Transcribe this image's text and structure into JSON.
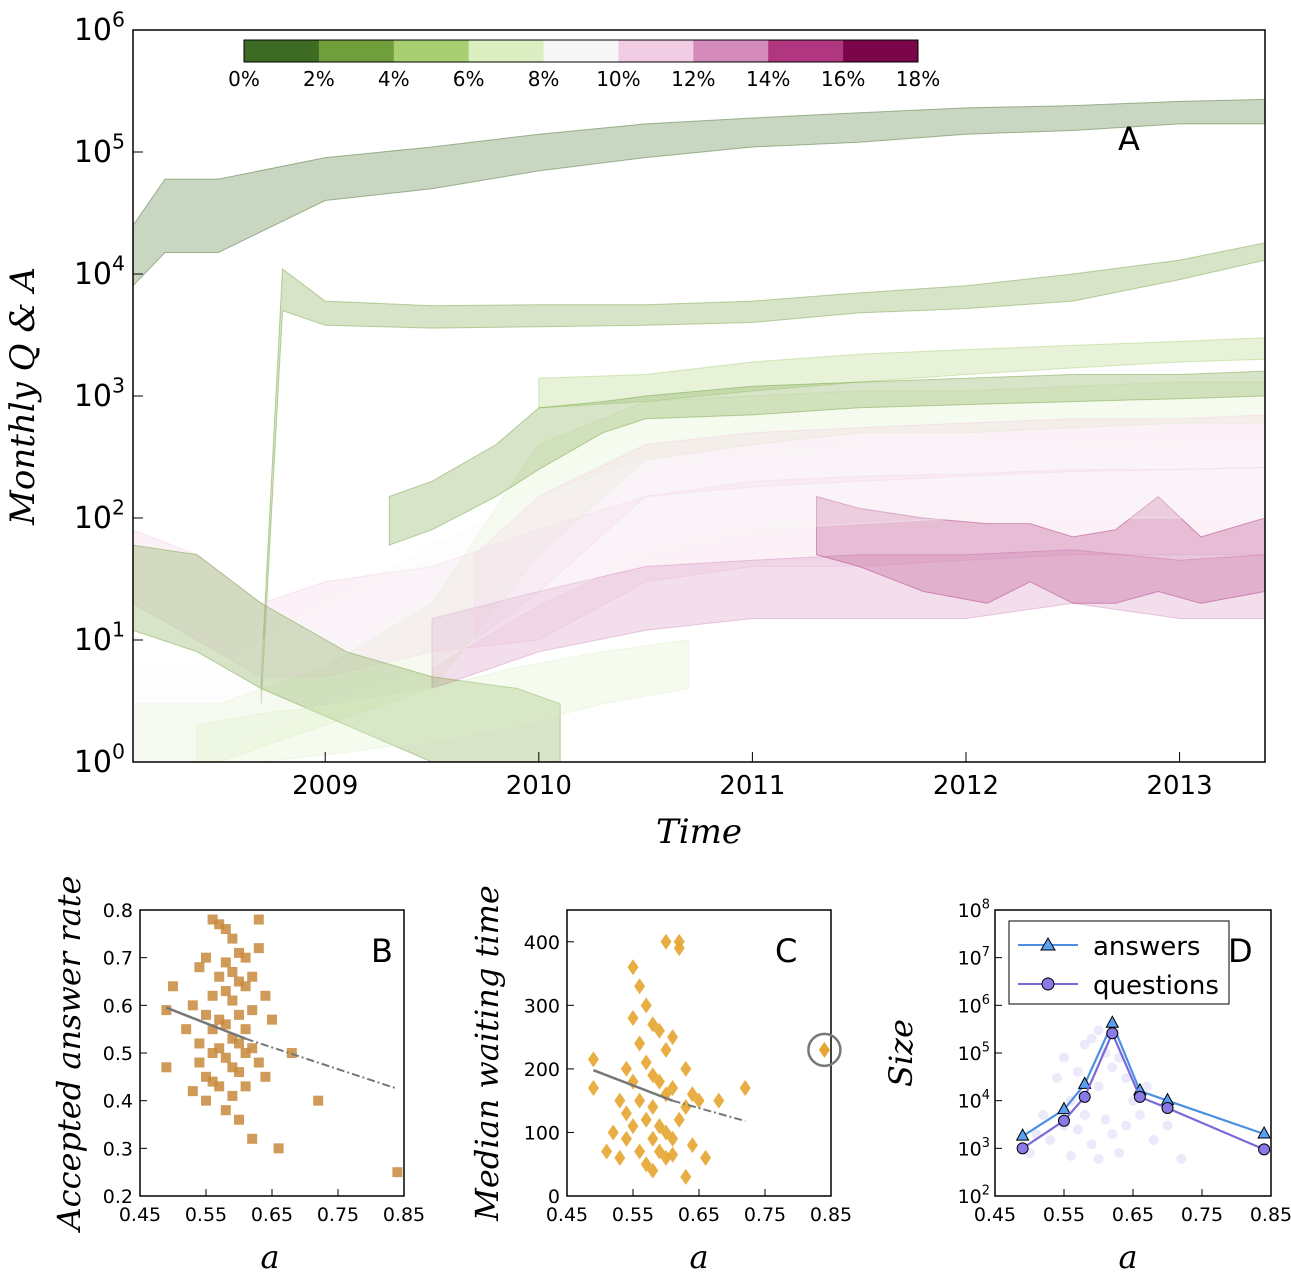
{
  "chart_data": [
    {
      "panel": "A",
      "type": "area",
      "panel_label": "A",
      "xlabel": "Time",
      "ylabel": "Monthly Q & A",
      "xticks": [
        "2009",
        "2010",
        "2011",
        "2012",
        "2013"
      ],
      "yticks": [
        "10^0",
        "10^1",
        "10^2",
        "10^3",
        "10^4",
        "10^5",
        "10^6"
      ],
      "y_scale": "log",
      "xlim": [
        2008.6,
        2013.9
      ],
      "ylim": [
        1,
        1000000
      ],
      "colorbar": {
        "ticks": [
          "0%",
          "2%",
          "4%",
          "6%",
          "8%",
          "10%",
          "12%",
          "14%",
          "16%",
          "18%"
        ],
        "colors": [
          "#3e6b24",
          "#6f9e3a",
          "#a8cf72",
          "#dcefc3",
          "#f7f7f7",
          "#f1cde4",
          "#d48bbc",
          "#b0367f",
          "#7a0649"
        ]
      },
      "bands": [
        {
          "color": "#3e6b24",
          "x": [
            2008.6,
            2008.75,
            2009.0,
            2009.5,
            2010.0,
            2010.5,
            2011.0,
            2011.5,
            2012.0,
            2012.5,
            2013.0,
            2013.5,
            2013.9
          ],
          "low": [
            8000,
            15000,
            15000,
            40000,
            50000,
            70000,
            90000,
            110000,
            120000,
            140000,
            150000,
            170000,
            170000
          ],
          "high": [
            25000,
            60000,
            60000,
            90000,
            110000,
            140000,
            170000,
            190000,
            210000,
            230000,
            240000,
            260000,
            270000
          ]
        },
        {
          "color": "#6f9e3a",
          "x": [
            2009.2,
            2009.3,
            2009.5,
            2010.0,
            2010.5,
            2011.0,
            2011.5,
            2012.0,
            2012.5,
            2013.0,
            2013.5,
            2013.9
          ],
          "low": [
            3,
            5000,
            3800,
            3600,
            3700,
            3800,
            4000,
            4800,
            5200,
            6000,
            9000,
            13000
          ],
          "high": [
            5,
            11000,
            6000,
            5500,
            5600,
            5600,
            6000,
            7000,
            8000,
            10000,
            13000,
            18000
          ]
        },
        {
          "color": "#a8cf72",
          "x": [
            2010.5,
            2011.0,
            2011.5,
            2012.0,
            2012.5,
            2013.0,
            2013.5,
            2013.9
          ],
          "low": [
            800,
            900,
            1100,
            1300,
            1500,
            1700,
            1900,
            2000
          ],
          "high": [
            1400,
            1500,
            1900,
            2200,
            2400,
            2600,
            2800,
            3000
          ]
        },
        {
          "color": "#dcefc3",
          "x": [
            2008.6,
            2009.0,
            2009.5,
            2010.0,
            2010.5,
            2011.0,
            2011.5,
            2012.0,
            2012.5,
            2013.0,
            2013.5,
            2013.9
          ],
          "low": [
            1,
            1,
            2,
            4,
            50,
            300,
            400,
            500,
            500,
            550,
            600,
            600
          ],
          "high": [
            3,
            3,
            6,
            20,
            400,
            900,
            1000,
            1100,
            1100,
            1200,
            1300,
            1300
          ]
        },
        {
          "color": "#6f9e3a",
          "x": [
            2009.8,
            2010.0,
            2010.3,
            2010.5,
            2010.8,
            2011.0,
            2011.5,
            2012.0,
            2012.5,
            2013.0,
            2013.5,
            2013.9
          ],
          "low": [
            60,
            80,
            150,
            250,
            500,
            650,
            700,
            800,
            850,
            900,
            950,
            1000
          ],
          "high": [
            150,
            200,
            400,
            800,
            900,
            1000,
            1200,
            1300,
            1400,
            1500,
            1500,
            1600
          ]
        },
        {
          "color": "#f1cde4",
          "x": [
            2008.6,
            2008.9,
            2009.2,
            2009.5,
            2010.0,
            2010.5,
            2011.0,
            2011.5,
            2012.0,
            2012.5,
            2013.0,
            2013.5,
            2013.9
          ],
          "low": [
            20,
            10,
            5,
            5,
            8,
            10,
            30,
            40,
            40,
            45,
            50,
            50,
            50
          ],
          "high": [
            80,
            50,
            20,
            30,
            40,
            80,
            150,
            200,
            220,
            230,
            250,
            250,
            260
          ]
        },
        {
          "color": "#f1cde4",
          "x": [
            2010.2,
            2010.5,
            2011.0,
            2011.5,
            2012.0,
            2012.5,
            2013.0,
            2013.5,
            2013.9
          ],
          "low": [
            10,
            25,
            150,
            180,
            200,
            220,
            240,
            250,
            260
          ],
          "high": [
            50,
            150,
            400,
            500,
            550,
            600,
            650,
            650,
            700
          ]
        },
        {
          "color": "#d48bbc",
          "x": [
            2010.0,
            2010.5,
            2011.0,
            2011.5,
            2012.0,
            2012.5,
            2013.0,
            2013.5,
            2013.9
          ],
          "low": [
            4,
            8,
            12,
            15,
            15,
            15,
            20,
            15,
            15
          ],
          "high": [
            15,
            25,
            40,
            45,
            50,
            50,
            55,
            45,
            50
          ]
        },
        {
          "color": "#b0367f",
          "x": [
            2011.8,
            2012.0,
            2012.3,
            2012.6,
            2012.8,
            2013.0,
            2013.2,
            2013.4,
            2013.6,
            2013.9
          ],
          "low": [
            50,
            40,
            25,
            20,
            30,
            20,
            20,
            25,
            20,
            25
          ],
          "high": [
            150,
            120,
            100,
            90,
            90,
            70,
            80,
            150,
            70,
            100
          ]
        },
        {
          "color": "#f7f7f7",
          "x": [
            2008.6,
            2009.0,
            2009.5,
            2010.0,
            2010.5,
            2011.0,
            2011.5,
            2012.0,
            2012.5,
            2013.0,
            2013.5,
            2013.9
          ],
          "low": [
            1,
            1,
            3,
            6,
            20,
            50,
            80,
            90,
            100,
            100,
            100,
            100
          ],
          "high": [
            6,
            6,
            20,
            60,
            150,
            300,
            350,
            400,
            400,
            400,
            420,
            420
          ]
        },
        {
          "color": "#6f9e3a",
          "x": [
            2008.6,
            2008.9,
            2009.2,
            2009.6,
            2010.0,
            2010.4,
            2010.6
          ],
          "low": [
            12,
            8,
            4,
            2,
            1,
            1,
            1
          ],
          "high": [
            60,
            50,
            20,
            8,
            5,
            4,
            3
          ]
        },
        {
          "color": "#dcefc3",
          "x": [
            2008.9,
            2009.2,
            2009.6,
            2010.0,
            2010.4,
            2010.8,
            2011.2
          ],
          "low": [
            1,
            1,
            1.2,
            1.5,
            2,
            3,
            4
          ],
          "high": [
            2,
            2.5,
            3,
            4,
            6,
            8,
            10
          ]
        }
      ]
    },
    {
      "panel": "B",
      "type": "scatter",
      "panel_label": "B",
      "xlabel": "a",
      "ylabel": "Accepted answer rate",
      "xlim": [
        0.45,
        0.85
      ],
      "ylim": [
        0.2,
        0.8
      ],
      "xticks": [
        "0.45",
        "0.55",
        "0.65",
        "0.75",
        "0.85"
      ],
      "yticks": [
        "0.2",
        "0.3",
        "0.4",
        "0.5",
        "0.6",
        "0.7",
        "0.8"
      ],
      "marker_color": "#c88a3c",
      "fit_line": {
        "x": [
          0.49,
          0.61,
          0.84
        ],
        "y": [
          0.595,
          0.53,
          0.425
        ]
      },
      "points": {
        "x": [
          0.49,
          0.49,
          0.5,
          0.52,
          0.53,
          0.53,
          0.54,
          0.54,
          0.54,
          0.55,
          0.55,
          0.55,
          0.55,
          0.56,
          0.56,
          0.56,
          0.56,
          0.56,
          0.57,
          0.57,
          0.57,
          0.57,
          0.57,
          0.58,
          0.58,
          0.58,
          0.58,
          0.58,
          0.58,
          0.59,
          0.59,
          0.59,
          0.59,
          0.59,
          0.59,
          0.6,
          0.6,
          0.6,
          0.6,
          0.6,
          0.6,
          0.61,
          0.61,
          0.61,
          0.61,
          0.61,
          0.62,
          0.62,
          0.62,
          0.62,
          0.63,
          0.63,
          0.63,
          0.64,
          0.64,
          0.65,
          0.66,
          0.68,
          0.72,
          0.84
        ],
        "y": [
          0.59,
          0.47,
          0.64,
          0.55,
          0.6,
          0.42,
          0.68,
          0.52,
          0.48,
          0.7,
          0.58,
          0.45,
          0.4,
          0.78,
          0.62,
          0.55,
          0.5,
          0.44,
          0.77,
          0.66,
          0.57,
          0.51,
          0.43,
          0.76,
          0.69,
          0.63,
          0.56,
          0.49,
          0.38,
          0.74,
          0.67,
          0.61,
          0.53,
          0.47,
          0.41,
          0.71,
          0.65,
          0.58,
          0.52,
          0.46,
          0.36,
          0.7,
          0.64,
          0.55,
          0.5,
          0.43,
          0.66,
          0.59,
          0.51,
          0.32,
          0.78,
          0.72,
          0.48,
          0.62,
          0.45,
          0.57,
          0.3,
          0.5,
          0.4,
          0.25
        ]
      }
    },
    {
      "panel": "C",
      "type": "scatter",
      "panel_label": "C",
      "xlabel": "a",
      "ylabel": "Median waiting time",
      "xlim": [
        0.45,
        0.85
      ],
      "ylim": [
        0,
        450
      ],
      "xticks": [
        "0.45",
        "0.55",
        "0.65",
        "0.75",
        "0.85"
      ],
      "yticks": [
        "0",
        "100",
        "200",
        "300",
        "400"
      ],
      "marker_color": "#e6a530",
      "fit_line": {
        "x": [
          0.49,
          0.61,
          0.72
        ],
        "y": [
          198,
          150,
          118
        ]
      },
      "outlier": {
        "x": 0.84,
        "y": 230
      },
      "points": {
        "x": [
          0.49,
          0.49,
          0.51,
          0.52,
          0.53,
          0.53,
          0.54,
          0.54,
          0.54,
          0.55,
          0.55,
          0.55,
          0.55,
          0.56,
          0.56,
          0.56,
          0.56,
          0.57,
          0.57,
          0.57,
          0.57,
          0.58,
          0.58,
          0.58,
          0.58,
          0.58,
          0.59,
          0.59,
          0.59,
          0.59,
          0.6,
          0.6,
          0.6,
          0.6,
          0.6,
          0.61,
          0.61,
          0.61,
          0.61,
          0.62,
          0.62,
          0.62,
          0.63,
          0.63,
          0.63,
          0.64,
          0.64,
          0.65,
          0.66,
          0.68,
          0.72
        ],
        "y": [
          215,
          170,
          70,
          100,
          150,
          60,
          200,
          130,
          90,
          360,
          280,
          180,
          110,
          330,
          240,
          150,
          70,
          300,
          210,
          120,
          50,
          270,
          190,
          140,
          90,
          40,
          260,
          180,
          110,
          70,
          400,
          230,
          160,
          100,
          60,
          250,
          170,
          90,
          65,
          400,
          390,
          120,
          200,
          140,
          30,
          160,
          80,
          150,
          60,
          150,
          170
        ]
      }
    },
    {
      "panel": "D",
      "type": "line",
      "panel_label": "D",
      "xlabel": "a",
      "ylabel": "Size",
      "y_scale": "log",
      "xlim": [
        0.45,
        0.85
      ],
      "ylim": [
        100,
        100000000
      ],
      "xticks": [
        "0.45",
        "0.55",
        "0.65",
        "0.75",
        "0.85"
      ],
      "yticks": [
        "10^2",
        "10^3",
        "10^4",
        "10^5",
        "10^6",
        "10^7",
        "10^8"
      ],
      "legend": "top-right",
      "series": [
        {
          "name": "answers",
          "color": "#4a90e2",
          "marker": "triangle",
          "x": [
            0.49,
            0.55,
            0.58,
            0.62,
            0.66,
            0.7,
            0.84
          ],
          "values": [
            1800,
            6500,
            22000,
            420000,
            16000,
            10000,
            2000
          ]
        },
        {
          "name": "questions",
          "color": "#7b68d8",
          "marker": "circle",
          "x": [
            0.49,
            0.55,
            0.58,
            0.62,
            0.66,
            0.7,
            0.84
          ],
          "values": [
            1000,
            3800,
            12000,
            260000,
            12000,
            7000,
            950
          ]
        }
      ],
      "cloud": {
        "x": [
          0.5,
          0.51,
          0.52,
          0.53,
          0.54,
          0.55,
          0.55,
          0.56,
          0.56,
          0.57,
          0.57,
          0.58,
          0.58,
          0.59,
          0.59,
          0.6,
          0.6,
          0.6,
          0.61,
          0.61,
          0.62,
          0.62,
          0.63,
          0.63,
          0.64,
          0.64,
          0.65,
          0.66,
          0.67,
          0.68,
          0.7,
          0.72
        ],
        "y": [
          800,
          2000,
          5000,
          1500,
          30000,
          3000,
          80000,
          10000,
          700,
          40000,
          2500,
          150000,
          5000,
          200000,
          1200,
          300000,
          20000,
          600,
          100000,
          4000,
          50000,
          2000,
          80000,
          800,
          30000,
          3000,
          10000,
          5000,
          20000,
          1500,
          3000,
          600
        ]
      }
    }
  ]
}
